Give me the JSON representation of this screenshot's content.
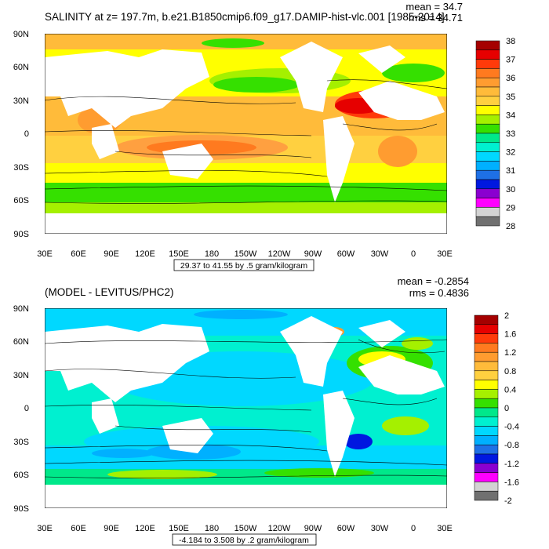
{
  "panels": [
    {
      "id": "top",
      "title": "SALINITY at z= 197.7m, b.e21.B1850cmip6.f09_g17.DAMIP-hist-vlc.001 [1985-2014]",
      "mean_text": "mean = 34.7",
      "rms_text": "rms = 34.71",
      "contour_info": "29.37 to 41.55 by .5 gram/kilogram",
      "lat_labels": [
        "90N",
        "60N",
        "30N",
        "0",
        "30S",
        "60S",
        "90S"
      ],
      "lon_labels": [
        "30E",
        "60E",
        "90E",
        "120E",
        "150E",
        "180",
        "150W",
        "120W",
        "90W",
        "60W",
        "30W",
        "0",
        "30E"
      ],
      "colorbar": {
        "labels": [
          "38",
          "37",
          "36",
          "35",
          "34",
          "33",
          "32",
          "31",
          "30",
          "29",
          "28"
        ],
        "colors": [
          "#a50000",
          "#e60000",
          "#ff3a0a",
          "#ff7a1f",
          "#ff9c30",
          "#ffbb3a",
          "#ffd040",
          "#ffff00",
          "#a5f000",
          "#35e000",
          "#00e88a",
          "#00f0d0",
          "#00d8ff",
          "#00b0ff",
          "#1e70e6",
          "#0018e0",
          "#8a00d0",
          "#ff00ff",
          "#d3d3d3",
          "#707070"
        ]
      }
    },
    {
      "id": "bottom",
      "title": "(MODEL - LEVITUS/PHC2)",
      "mean_text": "mean = -0.2854",
      "rms_text": "rms = 0.4836",
      "contour_info": "-4.184 to 3.508 by .2 gram/kilogram",
      "lat_labels": [
        "90N",
        "60N",
        "30N",
        "0",
        "30S",
        "60S",
        "90S"
      ],
      "lon_labels": [
        "30E",
        "60E",
        "90E",
        "120E",
        "150E",
        "180",
        "150W",
        "120W",
        "90W",
        "60W",
        "30W",
        "0",
        "30E"
      ],
      "colorbar": {
        "labels": [
          "2",
          "1.6",
          "1.2",
          "0.8",
          "0.4",
          "0",
          "-0.4",
          "-0.8",
          "-1.2",
          "-1.6",
          "-2"
        ],
        "colors": [
          "#a50000",
          "#e60000",
          "#ff3a0a",
          "#ff7a1f",
          "#ff9c30",
          "#ffbb3a",
          "#ffd040",
          "#ffff00",
          "#a5f000",
          "#35e000",
          "#00e88a",
          "#00f0d0",
          "#00d8ff",
          "#00b0ff",
          "#1e70e6",
          "#0018e0",
          "#8a00d0",
          "#ff00ff",
          "#d3d3d3",
          "#707070"
        ]
      }
    }
  ]
}
